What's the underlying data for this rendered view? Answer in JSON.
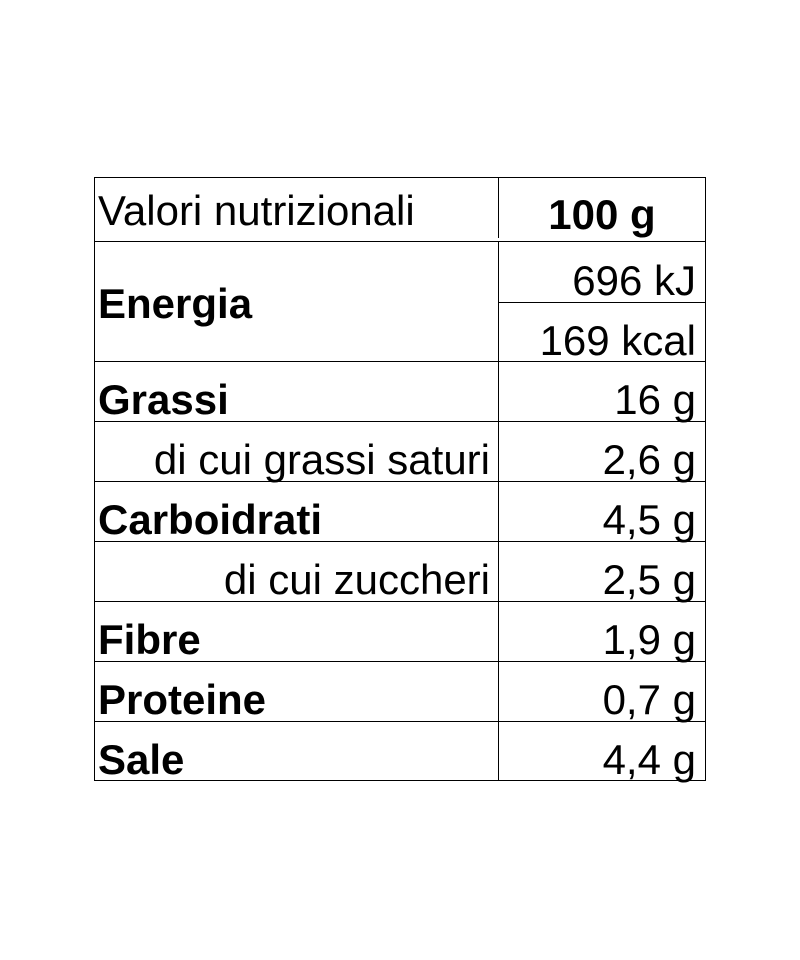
{
  "header": {
    "label": "Valori nutrizionali",
    "value": "100 g"
  },
  "energy": {
    "label": "Energia",
    "values": [
      "696 kJ",
      "169 kcal"
    ]
  },
  "rows": [
    {
      "label": "Grassi",
      "value": "16 g",
      "bold": true
    },
    {
      "label": "di cui grassi saturi",
      "value": "2,6 g",
      "bold": false
    },
    {
      "label": "Carboidrati",
      "value": "4,5 g",
      "bold": true
    },
    {
      "label": "di cui zuccheri",
      "value": "2,5 g",
      "bold": false
    },
    {
      "label": "Fibre",
      "value": "1,9 g",
      "bold": true
    },
    {
      "label": "Proteine",
      "value": "0,7 g",
      "bold": true
    },
    {
      "label": "Sale",
      "value": "4,4 g",
      "bold": true
    }
  ]
}
